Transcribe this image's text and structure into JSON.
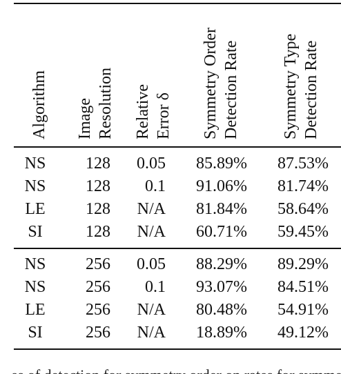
{
  "table": {
    "headers": [
      {
        "lines": [
          "Algorithm"
        ]
      },
      {
        "lines": [
          "Image",
          "Resolution"
        ]
      },
      {
        "lines": [
          "Relative",
          "Error δ"
        ]
      },
      {
        "lines": [
          "Symmetry Order",
          "Detection Rate"
        ]
      },
      {
        "lines": [
          "Symmetry Type",
          "Detection Rate"
        ]
      }
    ],
    "groups": [
      {
        "rows": [
          {
            "algorithm": "NS",
            "resolution": "128",
            "error": "0.05",
            "order_rate": "85.89%",
            "type_rate": "87.53%"
          },
          {
            "algorithm": "NS",
            "resolution": "128",
            "error": "0.1",
            "order_rate": "91.06%",
            "type_rate": "81.74%"
          },
          {
            "algorithm": "LE",
            "resolution": "128",
            "error": "N/A",
            "order_rate": "81.84%",
            "type_rate": "58.64%"
          },
          {
            "algorithm": "SI",
            "resolution": "128",
            "error": "N/A",
            "order_rate": "60.71%",
            "type_rate": "59.45%"
          }
        ]
      },
      {
        "rows": [
          {
            "algorithm": "NS",
            "resolution": "256",
            "error": "0.05",
            "order_rate": "88.29%",
            "type_rate": "89.29%"
          },
          {
            "algorithm": "NS",
            "resolution": "256",
            "error": "0.1",
            "order_rate": "93.07%",
            "type_rate": "84.51%"
          },
          {
            "algorithm": "LE",
            "resolution": "256",
            "error": "N/A",
            "order_rate": "80.48%",
            "type_rate": "54.91%"
          },
          {
            "algorithm": "SI",
            "resolution": "256",
            "error": "N/A",
            "order_rate": "18.89%",
            "type_rate": "49.12%"
          }
        ]
      }
    ]
  },
  "caption": {
    "text": "es of detection for symmetry order on rates for symmetry"
  }
}
